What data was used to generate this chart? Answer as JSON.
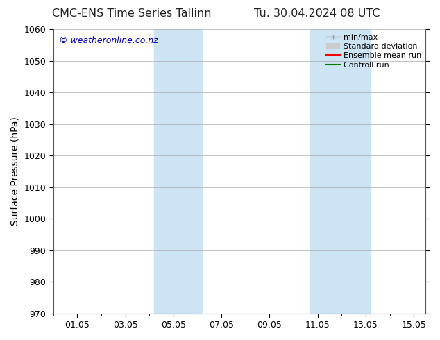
{
  "title_left": "CMC-ENS Time Series Tallinn",
  "title_right": "Tu. 30.04.2024 08 UTC",
  "ylabel": "Surface Pressure (hPa)",
  "xlim": [
    0.0,
    15.5
  ],
  "ylim": [
    970,
    1060
  ],
  "yticks": [
    970,
    980,
    990,
    1000,
    1010,
    1020,
    1030,
    1040,
    1050,
    1060
  ],
  "xtick_labels": [
    "01.05",
    "03.05",
    "05.05",
    "07.05",
    "09.05",
    "11.05",
    "13.05",
    "15.05"
  ],
  "xtick_positions": [
    1,
    3,
    5,
    7,
    9,
    11,
    13,
    15
  ],
  "shade_bands": [
    {
      "xmin": 4.2,
      "xmax": 6.2,
      "color": "#cde4f5"
    },
    {
      "xmin": 10.7,
      "xmax": 13.2,
      "color": "#cde4f5"
    }
  ],
  "watermark": "© weatheronline.co.nz",
  "watermark_color": "#0000bb",
  "bg_color": "#ffffff",
  "plot_bg_color": "#ffffff",
  "legend_entries": [
    {
      "label": "min/max",
      "color": "#999999",
      "lw": 1.0,
      "ls": "-",
      "type": "errorbar"
    },
    {
      "label": "Standard deviation",
      "color": "#cccccc",
      "lw": 5,
      "ls": "-",
      "type": "patch"
    },
    {
      "label": "Ensemble mean run",
      "color": "#ff0000",
      "lw": 1.5,
      "ls": "-",
      "type": "line"
    },
    {
      "label": "Controll run",
      "color": "#007700",
      "lw": 1.5,
      "ls": "-",
      "type": "line"
    }
  ],
  "grid_color": "#aaaaaa",
  "title_fontsize": 11.5,
  "ylabel_fontsize": 10,
  "tick_fontsize": 9,
  "watermark_fontsize": 9,
  "legend_fontsize": 8
}
